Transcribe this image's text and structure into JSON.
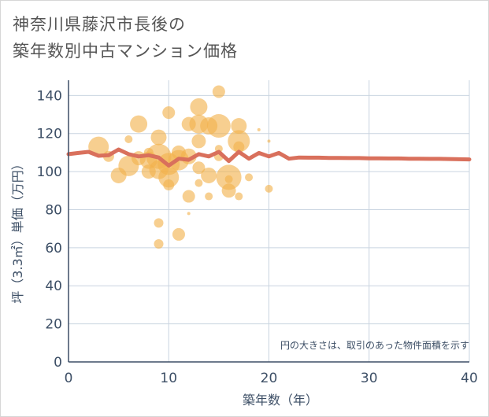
{
  "title_line1": "神奈川県藤沢市長後の",
  "title_line2": "築年数別中古マンション価格",
  "chart_data": {
    "type": "scatter",
    "title": "神奈川県藤沢市長後の築年数別中古マンション価格",
    "xlabel": "築年数（年）",
    "ylabel": "坪（3.3㎡）単価（万円）",
    "xlim": [
      0,
      40
    ],
    "ylim": [
      0,
      148
    ],
    "xticks": [
      0,
      10,
      20,
      30,
      40
    ],
    "yticks": [
      0,
      20,
      40,
      60,
      80,
      100,
      120,
      140
    ],
    "grid": true,
    "annotation": "円の大きさは、取引のあった物件面積を示す",
    "colors": {
      "bubble": "#f2b24c",
      "trend": "#d9705c",
      "grid": "#c9d4e0"
    },
    "bubbles": [
      {
        "x": 3,
        "y": 113,
        "s": 13
      },
      {
        "x": 4,
        "y": 108,
        "s": 7
      },
      {
        "x": 5,
        "y": 98,
        "s": 10
      },
      {
        "x": 6,
        "y": 103,
        "s": 13
      },
      {
        "x": 6,
        "y": 117,
        "s": 5
      },
      {
        "x": 7,
        "y": 125,
        "s": 11
      },
      {
        "x": 7,
        "y": 107,
        "s": 9
      },
      {
        "x": 8,
        "y": 100,
        "s": 9
      },
      {
        "x": 8,
        "y": 106,
        "s": 11
      },
      {
        "x": 8,
        "y": 110,
        "s": 6
      },
      {
        "x": 9,
        "y": 118,
        "s": 10
      },
      {
        "x": 9,
        "y": 108,
        "s": 16
      },
      {
        "x": 9,
        "y": 101,
        "s": 12
      },
      {
        "x": 9,
        "y": 73,
        "s": 6
      },
      {
        "x": 9,
        "y": 62,
        "s": 6
      },
      {
        "x": 10,
        "y": 131,
        "s": 8
      },
      {
        "x": 10,
        "y": 104,
        "s": 14
      },
      {
        "x": 10,
        "y": 97,
        "s": 13
      },
      {
        "x": 10,
        "y": 93,
        "s": 7
      },
      {
        "x": 11,
        "y": 110,
        "s": 9
      },
      {
        "x": 11,
        "y": 106,
        "s": 13
      },
      {
        "x": 11,
        "y": 67,
        "s": 8
      },
      {
        "x": 12,
        "y": 125,
        "s": 9
      },
      {
        "x": 12,
        "y": 108,
        "s": 10
      },
      {
        "x": 12,
        "y": 87,
        "s": 8
      },
      {
        "x": 12,
        "y": 78,
        "s": 2
      },
      {
        "x": 13,
        "y": 134,
        "s": 11
      },
      {
        "x": 13,
        "y": 125,
        "s": 12
      },
      {
        "x": 13,
        "y": 116,
        "s": 9
      },
      {
        "x": 13,
        "y": 102,
        "s": 8
      },
      {
        "x": 13,
        "y": 94,
        "s": 5
      },
      {
        "x": 14,
        "y": 124,
        "s": 11
      },
      {
        "x": 14,
        "y": 98,
        "s": 10
      },
      {
        "x": 14,
        "y": 87,
        "s": 5
      },
      {
        "x": 15,
        "y": 142,
        "s": 8
      },
      {
        "x": 15,
        "y": 124,
        "s": 15
      },
      {
        "x": 15,
        "y": 112,
        "s": 5
      },
      {
        "x": 15,
        "y": 108,
        "s": 6
      },
      {
        "x": 16,
        "y": 97,
        "s": 16
      },
      {
        "x": 16,
        "y": 90,
        "s": 9
      },
      {
        "x": 16,
        "y": 96,
        "s": 5
      },
      {
        "x": 17,
        "y": 124,
        "s": 10
      },
      {
        "x": 17,
        "y": 116,
        "s": 14
      },
      {
        "x": 17,
        "y": 113,
        "s": 7
      },
      {
        "x": 17,
        "y": 87,
        "s": 5
      },
      {
        "x": 18,
        "y": 97,
        "s": 5
      },
      {
        "x": 19,
        "y": 122,
        "s": 2
      },
      {
        "x": 20,
        "y": 116,
        "s": 2
      },
      {
        "x": 20,
        "y": 91,
        "s": 5
      }
    ],
    "trend": {
      "x": [
        0,
        1,
        2,
        3,
        4,
        5,
        6,
        7,
        8,
        9,
        10,
        11,
        12,
        13,
        14,
        15,
        16,
        17,
        18,
        19,
        20,
        21,
        22,
        23,
        24,
        25,
        26,
        27,
        28,
        29,
        30,
        31,
        32,
        33,
        34,
        35,
        36,
        37,
        38,
        39,
        40
      ],
      "y": [
        109.2,
        109.8,
        110.4,
        108.3,
        108.6,
        111.6,
        109.2,
        108,
        108.6,
        107.4,
        103.2,
        106.8,
        106.2,
        109.2,
        108,
        110.4,
        105.6,
        110.4,
        106.8,
        109.8,
        108,
        109.8,
        106.8,
        107.4,
        107.3,
        107.3,
        107.2,
        107.2,
        107.1,
        107.1,
        107,
        107,
        106.9,
        106.9,
        106.8,
        106.8,
        106.7,
        106.7,
        106.6,
        106.5,
        106.4
      ]
    }
  }
}
